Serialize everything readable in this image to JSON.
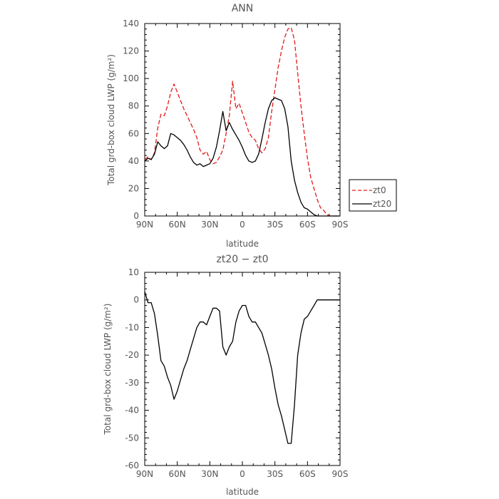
{
  "chart_data": [
    {
      "type": "line",
      "title": "ANN",
      "xlabel": "latitude",
      "ylabel": "Total grd-box cloud LWP (g/m²)",
      "xlim": [
        90,
        -90
      ],
      "ylim": [
        0,
        140
      ],
      "xticks": [
        90,
        60,
        30,
        0,
        -30,
        -60,
        -90
      ],
      "xtick_labels": [
        "90N",
        "60N",
        "30N",
        "0",
        "30S",
        "60S",
        "90S"
      ],
      "yticks": [
        0,
        20,
        40,
        60,
        80,
        100,
        120,
        140
      ],
      "legend": "right",
      "series": [
        {
          "name": "zt0",
          "color": "#e41a1c",
          "dash": "dashed",
          "x": [
            90,
            87,
            84,
            81,
            78,
            75,
            72,
            69,
            66,
            63,
            60,
            57,
            54,
            51,
            48,
            45,
            42,
            39,
            36,
            33,
            30,
            27,
            24,
            21,
            18,
            15,
            12,
            9,
            6,
            3,
            0,
            -3,
            -6,
            -9,
            -12,
            -15,
            -18,
            -21,
            -24,
            -27,
            -30,
            -33,
            -36,
            -39,
            -42,
            -45,
            -48,
            -51,
            -54,
            -57,
            -60,
            -63,
            -66,
            -69,
            -72,
            -75,
            -78,
            -81,
            -84,
            -87,
            -90
          ],
          "y": [
            41,
            43,
            41,
            46,
            64,
            74,
            73,
            80,
            90,
            96,
            90,
            84,
            78,
            73,
            68,
            63,
            57,
            48,
            45,
            47,
            41,
            38,
            39,
            43,
            48,
            60,
            73,
            98,
            78,
            82,
            75,
            68,
            61,
            57,
            55,
            49,
            46,
            49,
            57,
            76,
            92,
            108,
            120,
            130,
            136,
            137,
            128,
            104,
            80,
            60,
            42,
            28,
            20,
            12,
            6,
            4,
            1,
            0,
            0,
            0,
            0
          ],
          "x_note": ""
        },
        {
          "name": "zt20",
          "color": "#000000",
          "dash": "solid",
          "x": [
            90,
            87,
            84,
            81,
            78,
            75,
            72,
            69,
            66,
            63,
            60,
            57,
            54,
            51,
            48,
            45,
            42,
            39,
            36,
            33,
            30,
            27,
            24,
            21,
            18,
            15,
            12,
            9,
            6,
            3,
            0,
            -3,
            -6,
            -9,
            -12,
            -15,
            -18,
            -21,
            -24,
            -27,
            -30,
            -33,
            -36,
            -39,
            -42,
            -45,
            -48,
            -51,
            -54,
            -57,
            -60,
            -63,
            -66,
            -69,
            -72,
            -75,
            -78,
            -81,
            -84,
            -87,
            -90
          ],
          "y": [
            40,
            42,
            41,
            45,
            54,
            51,
            49,
            51,
            60,
            59,
            57,
            55,
            52,
            48,
            43,
            39,
            37,
            38,
            36,
            37,
            38,
            42,
            50,
            62,
            76,
            62,
            68,
            63,
            59,
            55,
            50,
            44,
            40,
            39,
            40,
            45,
            56,
            68,
            78,
            84,
            86,
            85,
            84,
            78,
            65,
            40,
            26,
            17,
            10,
            6,
            5,
            3,
            1,
            0,
            0,
            0,
            0,
            0,
            0,
            0,
            0
          ]
        }
      ]
    },
    {
      "type": "line",
      "title": "zt20 − zt0",
      "xlabel": "latitude",
      "ylabel": "Total grd-box cloud LWP (g/m²)",
      "xlim": [
        90,
        -90
      ],
      "ylim": [
        -60,
        10
      ],
      "xticks": [
        90,
        60,
        30,
        0,
        -30,
        -60,
        -90
      ],
      "xtick_labels": [
        "90N",
        "60N",
        "30N",
        "0",
        "30S",
        "60S",
        "90S"
      ],
      "yticks": [
        -60,
        -50,
        -40,
        -30,
        -20,
        -10,
        0,
        10
      ],
      "series": [
        {
          "color": "#000000",
          "dash": "solid",
          "x": [
            90,
            87,
            84,
            81,
            78,
            75,
            72,
            69,
            66,
            63,
            60,
            57,
            54,
            51,
            48,
            45,
            42,
            39,
            36,
            33,
            30,
            27,
            24,
            21,
            18,
            15,
            12,
            9,
            6,
            3,
            0,
            -3,
            -6,
            -9,
            -12,
            -15,
            -18,
            -21,
            -24,
            -27,
            -30,
            -33,
            -36,
            -39,
            -42,
            -45,
            -48,
            -51,
            -54,
            -57,
            -60,
            -63,
            -66,
            -69,
            -72,
            -75,
            -78,
            -81,
            -84,
            -87,
            -90
          ],
          "y": [
            3,
            -1,
            -1,
            -5,
            -13,
            -22,
            -24,
            -28,
            -31,
            -36,
            -33,
            -29,
            -25,
            -22,
            -18,
            -14,
            -10,
            -8,
            -8,
            -9,
            -6,
            -3,
            -3,
            -4,
            -17,
            -20,
            -17,
            -15,
            -8,
            -4,
            -2,
            -2,
            -6,
            -8,
            -8,
            -10,
            -12,
            -16,
            -20,
            -25,
            -32,
            -38,
            -42,
            -47,
            -52,
            -52,
            -38,
            -20,
            -12,
            -7,
            -6,
            -4,
            -2,
            0,
            0,
            0,
            0,
            0,
            0,
            0,
            0
          ],
          "x_note": ""
        }
      ]
    }
  ],
  "legend_entries": [
    "zt0",
    "zt20"
  ]
}
